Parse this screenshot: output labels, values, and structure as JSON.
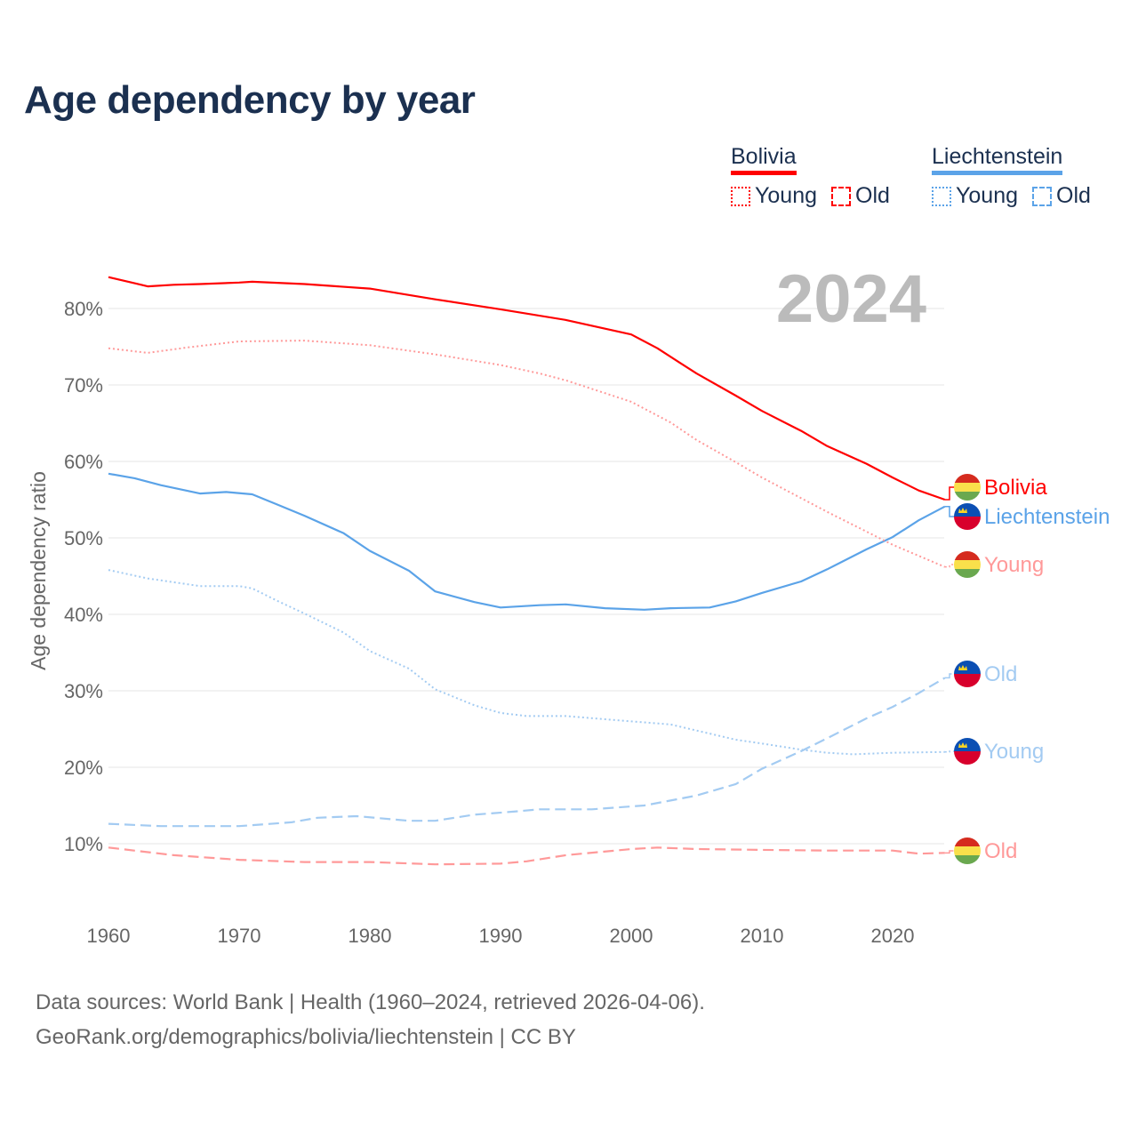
{
  "title": "Age dependency by year",
  "year_watermark": "2024",
  "legend": [
    {
      "country": "Bolivia",
      "color": "#ff0000",
      "young_label": "Young",
      "old_label": "Old"
    },
    {
      "country": "Liechtenstein",
      "color": "#5ba3e8",
      "young_label": "Young",
      "old_label": "Old"
    }
  ],
  "source_line1": "Data sources: World Bank | Health (1960–2024, retrieved 2026-04-06).",
  "source_line2": "GeoRank.org/demographics/bolivia/liechtenstein | CC BY",
  "chart_data": {
    "type": "line",
    "title": "Age dependency by year",
    "xlabel": "",
    "ylabel": "Age dependency ratio",
    "xlim": [
      1960,
      2024
    ],
    "ylim": [
      0,
      85
    ],
    "x_ticks": [
      1960,
      1970,
      1980,
      1990,
      2000,
      2010,
      2020
    ],
    "y_ticks": [
      10,
      20,
      30,
      40,
      50,
      60,
      70,
      80
    ],
    "y_tick_labels": [
      "10%",
      "20%",
      "30%",
      "40%",
      "50%",
      "60%",
      "70%",
      "80%"
    ],
    "grid": true,
    "legend_position": "top-right",
    "series": [
      {
        "name": "Bolivia",
        "label": "Bolivia",
        "country": "Bolivia",
        "kind": "total",
        "color": "#ff0000",
        "style": "solid",
        "points": [
          [
            1960,
            84.1
          ],
          [
            1962,
            83.3
          ],
          [
            1963,
            82.9
          ],
          [
            1965,
            83.1
          ],
          [
            1967,
            83.2
          ],
          [
            1970,
            83.4
          ],
          [
            1971,
            83.5
          ],
          [
            1975,
            83.2
          ],
          [
            1980,
            82.6
          ],
          [
            1985,
            81.2
          ],
          [
            1990,
            79.9
          ],
          [
            1995,
            78.5
          ],
          [
            2000,
            76.6
          ],
          [
            2002,
            74.8
          ],
          [
            2005,
            71.5
          ],
          [
            2008,
            68.6
          ],
          [
            2010,
            66.6
          ],
          [
            2013,
            64.0
          ],
          [
            2015,
            62.0
          ],
          [
            2018,
            59.7
          ],
          [
            2020,
            57.9
          ],
          [
            2022,
            56.2
          ],
          [
            2024,
            55.0
          ]
        ]
      },
      {
        "name": "Liechtenstein",
        "label": "Liechtenstein",
        "country": "Liechtenstein",
        "kind": "total",
        "color": "#5ba3e8",
        "style": "solid",
        "points": [
          [
            1960,
            58.4
          ],
          [
            1962,
            57.8
          ],
          [
            1964,
            56.9
          ],
          [
            1967,
            55.8
          ],
          [
            1969,
            56.0
          ],
          [
            1971,
            55.7
          ],
          [
            1973,
            54.3
          ],
          [
            1975,
            52.9
          ],
          [
            1978,
            50.6
          ],
          [
            1980,
            48.3
          ],
          [
            1983,
            45.7
          ],
          [
            1985,
            43.0
          ],
          [
            1988,
            41.6
          ],
          [
            1990,
            40.9
          ],
          [
            1993,
            41.2
          ],
          [
            1995,
            41.3
          ],
          [
            1998,
            40.8
          ],
          [
            2001,
            40.6
          ],
          [
            2003,
            40.8
          ],
          [
            2006,
            40.9
          ],
          [
            2008,
            41.7
          ],
          [
            2010,
            42.8
          ],
          [
            2013,
            44.3
          ],
          [
            2015,
            45.9
          ],
          [
            2018,
            48.5
          ],
          [
            2020,
            50.1
          ],
          [
            2022,
            52.3
          ],
          [
            2024,
            54.1
          ]
        ]
      },
      {
        "name": "Bolivia Young",
        "label": "Young",
        "country": "Bolivia",
        "kind": "young",
        "color": "#ff9999",
        "style": "dotted",
        "points": [
          [
            1960,
            74.8
          ],
          [
            1963,
            74.2
          ],
          [
            1966,
            74.9
          ],
          [
            1970,
            75.7
          ],
          [
            1975,
            75.8
          ],
          [
            1980,
            75.2
          ],
          [
            1985,
            74.0
          ],
          [
            1990,
            72.6
          ],
          [
            1993,
            71.5
          ],
          [
            1995,
            70.6
          ],
          [
            2000,
            67.8
          ],
          [
            2003,
            65.1
          ],
          [
            2005,
            62.8
          ],
          [
            2008,
            59.9
          ],
          [
            2010,
            57.9
          ],
          [
            2015,
            53.4
          ],
          [
            2020,
            49.1
          ],
          [
            2024,
            46.2
          ]
        ]
      },
      {
        "name": "Liechtenstein Old",
        "label": "Old",
        "country": "Liechtenstein",
        "kind": "old",
        "color": "#a3cbf2",
        "style": "dashed",
        "points": [
          [
            1960,
            12.6
          ],
          [
            1964,
            12.3
          ],
          [
            1970,
            12.3
          ],
          [
            1974,
            12.8
          ],
          [
            1976,
            13.4
          ],
          [
            1979,
            13.6
          ],
          [
            1983,
            13.0
          ],
          [
            1985,
            13.0
          ],
          [
            1988,
            13.8
          ],
          [
            1991,
            14.2
          ],
          [
            1993,
            14.5
          ],
          [
            1997,
            14.5
          ],
          [
            2001,
            15.0
          ],
          [
            2005,
            16.3
          ],
          [
            2008,
            17.8
          ],
          [
            2010,
            19.8
          ],
          [
            2013,
            22.1
          ],
          [
            2015,
            23.8
          ],
          [
            2018,
            26.4
          ],
          [
            2020,
            27.9
          ],
          [
            2022,
            29.7
          ],
          [
            2024,
            31.7
          ]
        ]
      },
      {
        "name": "Liechtenstein Young",
        "label": "Young",
        "country": "Liechtenstein",
        "kind": "young",
        "color": "#a3cbf2",
        "style": "dotted",
        "points": [
          [
            1960,
            45.8
          ],
          [
            1963,
            44.7
          ],
          [
            1967,
            43.7
          ],
          [
            1970,
            43.7
          ],
          [
            1971,
            43.4
          ],
          [
            1973,
            41.7
          ],
          [
            1975,
            40.1
          ],
          [
            1978,
            37.6
          ],
          [
            1980,
            35.2
          ],
          [
            1983,
            32.9
          ],
          [
            1985,
            30.2
          ],
          [
            1988,
            28.1
          ],
          [
            1990,
            27.1
          ],
          [
            1992,
            26.7
          ],
          [
            1995,
            26.7
          ],
          [
            2000,
            26.0
          ],
          [
            2003,
            25.6
          ],
          [
            2005,
            24.8
          ],
          [
            2008,
            23.6
          ],
          [
            2010,
            23.1
          ],
          [
            2013,
            22.3
          ],
          [
            2015,
            21.9
          ],
          [
            2017,
            21.7
          ],
          [
            2020,
            21.9
          ],
          [
            2024,
            22.0
          ]
        ]
      },
      {
        "name": "Bolivia Old",
        "label": "Old",
        "country": "Bolivia",
        "kind": "old",
        "color": "#ff9999",
        "style": "dashed",
        "points": [
          [
            1960,
            9.5
          ],
          [
            1965,
            8.5
          ],
          [
            1970,
            7.9
          ],
          [
            1975,
            7.6
          ],
          [
            1980,
            7.6
          ],
          [
            1985,
            7.3
          ],
          [
            1990,
            7.4
          ],
          [
            1992,
            7.7
          ],
          [
            1995,
            8.5
          ],
          [
            2000,
            9.3
          ],
          [
            2002,
            9.5
          ],
          [
            2005,
            9.3
          ],
          [
            2010,
            9.2
          ],
          [
            2015,
            9.1
          ],
          [
            2020,
            9.1
          ],
          [
            2022,
            8.7
          ],
          [
            2024,
            8.8
          ]
        ]
      }
    ]
  }
}
